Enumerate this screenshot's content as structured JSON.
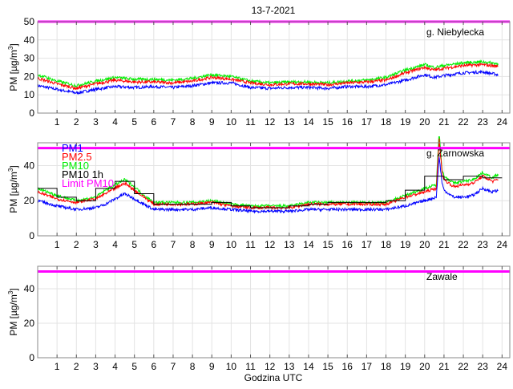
{
  "title": "13-7-2021",
  "colors": {
    "pm1": "#0000ff",
    "pm25": "#ff0000",
    "pm10": "#00ee00",
    "pm10_1h": "#000000",
    "limit": "#ff00ff",
    "grid": "#e3e3e3",
    "axis": "#888888"
  },
  "chart_data": [
    {
      "type": "line",
      "station": "g. Niebylecka",
      "ylabel": "PM [µg/m3]",
      "ylabel_main": "PM [µg/m",
      "ylabel_sup": "3",
      "ylabel_end": "]",
      "xlim": [
        0,
        24.4
      ],
      "ylim": [
        0,
        50
      ],
      "yticks": [
        0,
        10,
        20,
        30,
        40,
        50
      ],
      "xticks": [
        1,
        2,
        3,
        4,
        5,
        6,
        7,
        8,
        9,
        10,
        11,
        12,
        13,
        14,
        15,
        16,
        17,
        18,
        19,
        20,
        21,
        22,
        23,
        24
      ],
      "grid": true,
      "limit_pm10": 50,
      "x": [
        0,
        1,
        2,
        3,
        4,
        5,
        6,
        7,
        8,
        9,
        10,
        11,
        12,
        13,
        14,
        15,
        16,
        17,
        18,
        19,
        20,
        20.5,
        21,
        22,
        23,
        23.8
      ],
      "series": [
        {
          "name": "PM1",
          "key": "pm1",
          "values": [
            15,
            13,
            11,
            13,
            14.5,
            14,
            14.5,
            14,
            15,
            16.5,
            16.5,
            14,
            13.5,
            14,
            14,
            13.5,
            14.5,
            14.5,
            15.5,
            18,
            21,
            19.5,
            20.5,
            22,
            22.5,
            21
          ]
        },
        {
          "name": "PM2.5",
          "key": "pm25",
          "values": [
            19,
            16,
            13.5,
            16,
            18,
            17,
            17,
            16.5,
            17.5,
            19.5,
            18.5,
            16.5,
            15.5,
            16,
            16,
            15.5,
            16.5,
            17,
            18,
            22,
            25,
            23.5,
            24.5,
            26,
            26.5,
            25.5
          ]
        },
        {
          "name": "PM10",
          "key": "pm10",
          "values": [
            21,
            17.5,
            15,
            17.5,
            19.5,
            18.5,
            18.5,
            18,
            19,
            21,
            20,
            17.5,
            16.5,
            17,
            17,
            16.5,
            17.5,
            18,
            19.5,
            23.5,
            26.5,
            25,
            26,
            27.5,
            28,
            27
          ]
        }
      ]
    },
    {
      "type": "line",
      "station": "g. Żarnowska",
      "ylabel": "PM [µg/m3]",
      "ylabel_main": "PM [µg/m",
      "ylabel_sup": "3",
      "ylabel_end": "]",
      "xlim": [
        0,
        24.4
      ],
      "ylim": [
        0,
        53
      ],
      "yticks": [
        0,
        20,
        40
      ],
      "xticks": [
        1,
        2,
        3,
        4,
        5,
        6,
        7,
        8,
        9,
        10,
        11,
        12,
        13,
        14,
        15,
        16,
        17,
        18,
        19,
        20,
        21,
        22,
        23,
        24
      ],
      "grid": true,
      "limit_pm10": 50,
      "legend": [
        "PM1",
        "PM2.5",
        "PM10",
        "PM10 1h",
        "Limit PM10"
      ],
      "legend_position": "top-left",
      "x": [
        0,
        1,
        2,
        3,
        3.5,
        4,
        4.5,
        5,
        5.5,
        6,
        7,
        8,
        9,
        10,
        11,
        12,
        13,
        14,
        15,
        16,
        17,
        18,
        19,
        20,
        20.6,
        20.75,
        20.9,
        21,
        21.5,
        22,
        22.5,
        23,
        23.5,
        23.8
      ],
      "series": [
        {
          "name": "PM1",
          "key": "pm1",
          "values": [
            20,
            17,
            15,
            16,
            18,
            21,
            24,
            21,
            18,
            15,
            15,
            15,
            16,
            15,
            14,
            14,
            14,
            15,
            15,
            15,
            15,
            15,
            17,
            20,
            22,
            45,
            30,
            26,
            22,
            22,
            23,
            27,
            25,
            26
          ]
        },
        {
          "name": "PM2.5",
          "key": "pm25",
          "values": [
            25,
            21,
            19,
            21,
            24,
            27,
            30,
            26,
            22,
            18,
            18,
            18,
            19,
            17,
            16,
            16,
            16,
            18,
            18,
            18,
            18,
            18,
            22,
            25,
            27,
            55,
            36,
            32,
            28,
            29,
            30,
            34,
            31,
            32
          ]
        },
        {
          "name": "PM10",
          "key": "pm10",
          "values": [
            27,
            23,
            20,
            22,
            26,
            29,
            32,
            28,
            23,
            19,
            19,
            19,
            20,
            18,
            17,
            17,
            17,
            19,
            19,
            19,
            19,
            19,
            23,
            27,
            29,
            60,
            38,
            34,
            30,
            31,
            32,
            36,
            33,
            35
          ]
        }
      ],
      "pm10_1h": {
        "hours": [
          0,
          1,
          2,
          3,
          4,
          5,
          6,
          7,
          8,
          9,
          10,
          11,
          12,
          13,
          14,
          15,
          16,
          17,
          18,
          19,
          20,
          21,
          22,
          23
        ],
        "values": [
          27,
          22,
          20,
          27,
          31,
          24,
          18,
          18,
          18,
          19,
          17,
          16,
          16,
          17,
          18,
          19,
          19,
          19,
          20,
          26,
          34,
          32,
          34,
          33
        ]
      }
    },
    {
      "type": "line",
      "station": "Zawale",
      "ylabel": "PM [µg/m3]",
      "ylabel_main": "PM [µg/m",
      "ylabel_sup": "3",
      "ylabel_end": "]",
      "xlim": [
        0,
        24.4
      ],
      "ylim": [
        0,
        53
      ],
      "yticks": [
        0,
        20,
        40
      ],
      "xticks": [
        1,
        2,
        3,
        4,
        5,
        6,
        7,
        8,
        9,
        10,
        11,
        12,
        13,
        14,
        15,
        16,
        17,
        18,
        19,
        20,
        21,
        22,
        23,
        24
      ],
      "grid": true,
      "limit_pm10": 50,
      "xlabel": "Godzina UTC",
      "series": []
    }
  ]
}
